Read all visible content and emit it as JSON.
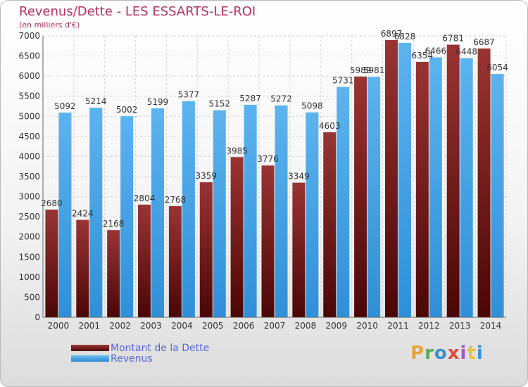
{
  "header": {
    "title": "Revenus/Dette - LES ESSARTS-LE-ROI",
    "subtitle": "(en milliers d'€)"
  },
  "legend": {
    "items": [
      {
        "label": "Montant de la Dette",
        "color": "#7a1c1c"
      },
      {
        "label": "Revenus",
        "color": "#3d9ee3"
      }
    ]
  },
  "logo": {
    "text": "Proxiti",
    "colors": [
      "#e8a33a",
      "#57a85a",
      "#3d8fd6",
      "#e04a3a",
      "#9a5bc2",
      "#e8c23a",
      "#3d8fd6"
    ]
  },
  "chart_data": {
    "type": "bar",
    "title": "Revenus/Dette - LES ESSARTS-LE-ROI",
    "subtitle": "(en milliers d'€)",
    "categories": [
      "2000",
      "2001",
      "2002",
      "2003",
      "2004",
      "2005",
      "2006",
      "2007",
      "2008",
      "2009",
      "2010",
      "2011",
      "2012",
      "2013",
      "2014"
    ],
    "series": [
      {
        "name": "Montant de la Dette",
        "color": "#7a1c1c",
        "values": [
          2680,
          2424,
          2168,
          2804,
          2768,
          3359,
          3985,
          3776,
          3349,
          4603,
          5989,
          6897,
          6354,
          6781,
          6687
        ]
      },
      {
        "name": "Revenus",
        "color": "#3d9ee3",
        "values": [
          5092,
          5214,
          5002,
          5199,
          5377,
          5152,
          5287,
          5272,
          5098,
          5731,
          5981,
          6828,
          6466,
          6448,
          6054
        ]
      }
    ],
    "ylim": [
      0,
      7000
    ],
    "yticks": [
      0,
      500,
      1000,
      1500,
      2000,
      2500,
      3000,
      3500,
      4000,
      4500,
      5000,
      5500,
      6000,
      6500,
      7000
    ],
    "grid": true,
    "legend_position": "bottom-left"
  }
}
